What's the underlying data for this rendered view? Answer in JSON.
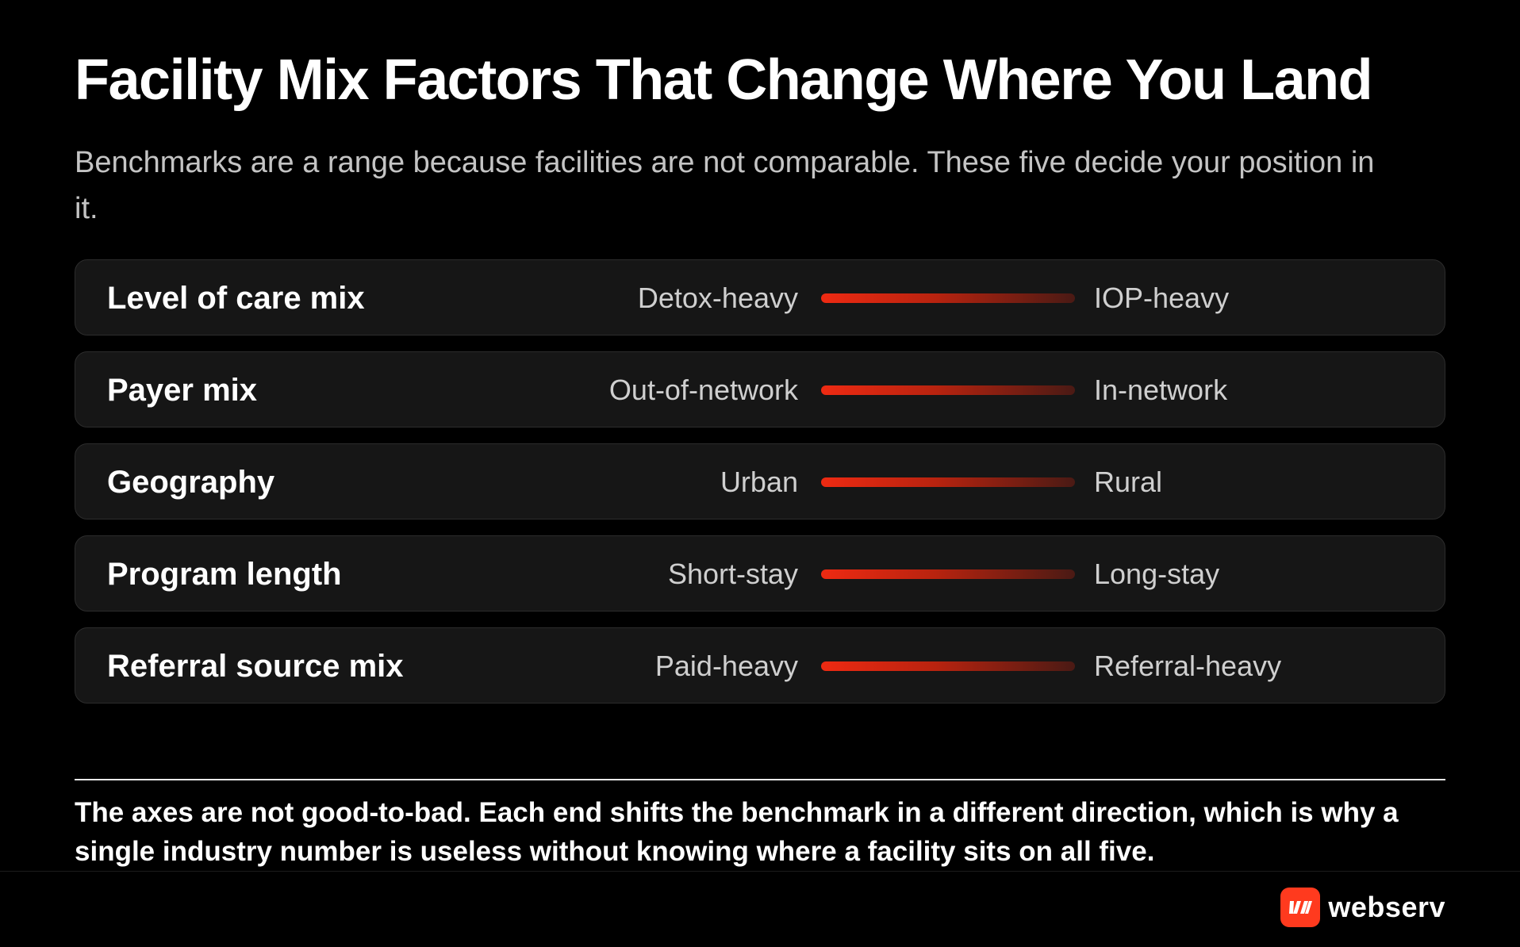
{
  "title": "Facility Mix Factors That Change Where You Land",
  "subtitle": "Benchmarks are a range because facilities are not comparable. These five decide your position in it.",
  "factors": [
    {
      "label": "Level of care mix",
      "left": "Detox-heavy",
      "right": "IOP-heavy"
    },
    {
      "label": "Payer mix",
      "left": "Out-of-network",
      "right": "In-network"
    },
    {
      "label": "Geography",
      "left": "Urban",
      "right": "Rural"
    },
    {
      "label": "Program length",
      "left": "Short-stay",
      "right": "Long-stay"
    },
    {
      "label": "Referral source mix",
      "left": "Paid-heavy",
      "right": "Referral-heavy"
    }
  ],
  "footnote": "The axes are not good-to-bad. Each end shifts the benchmark in a different direction, which is why a single industry number is useless without knowing where a facility sits on all five.",
  "brand": {
    "name": "webserv",
    "logo_icon": "webserv-logo-icon",
    "color": "#ff3a1e"
  },
  "colors": {
    "background": "#000000",
    "row_background": "#161616",
    "accent": "#ee2a12"
  }
}
